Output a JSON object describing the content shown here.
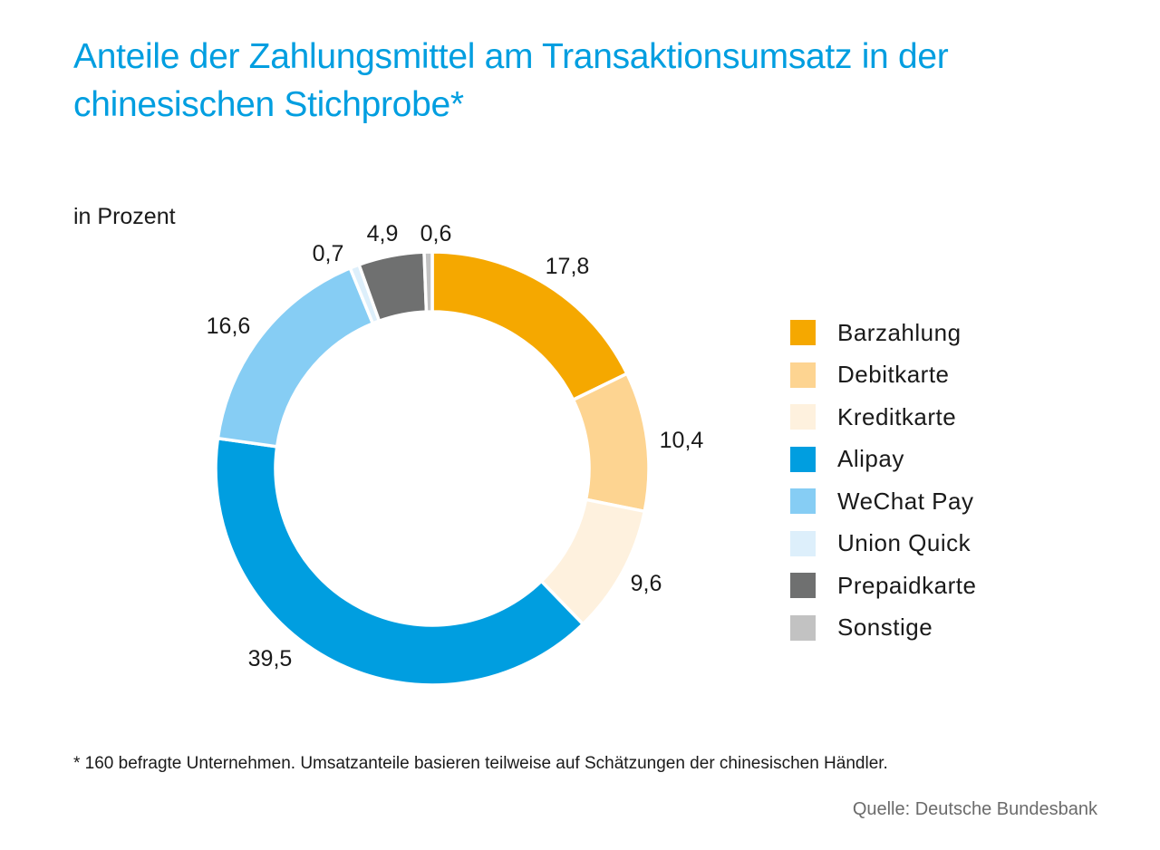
{
  "chart_data": {
    "type": "pie",
    "variant": "donut",
    "title": "Anteile der Zahlungsmittel am Transaktionsumsatz in der chinesischen Stichprobe*",
    "unit_label": "in Prozent",
    "start": "top",
    "direction": "clockwise",
    "legend_position": "right",
    "slices": [
      {
        "name": "Barzahlung",
        "value": 17.8,
        "label": "17,8",
        "color": "#F5A800"
      },
      {
        "name": "Debitkarte",
        "value": 10.4,
        "label": "10,4",
        "color": "#FDD491"
      },
      {
        "name": "Kreditkarte",
        "value": 9.6,
        "label": "9,6",
        "color": "#FEF1DE"
      },
      {
        "name": "Alipay",
        "value": 39.5,
        "label": "39,5",
        "color": "#009EE0"
      },
      {
        "name": "WeChat Pay",
        "value": 16.6,
        "label": "16,6",
        "color": "#86CDF4"
      },
      {
        "name": "Union Quick",
        "value": 0.7,
        "label": "0,7",
        "color": "#DDEFFB"
      },
      {
        "name": "Prepaidkarte",
        "value": 4.9,
        "label": "4,9",
        "color": "#6F7070"
      },
      {
        "name": "Sonstige",
        "value": 0.6,
        "label": "0,6",
        "color": "#C2C2C2"
      }
    ],
    "footnote": "* 160 befragte Unternehmen. Umsatzanteile basieren teilweise auf Schätzungen der chinesischen Händler.",
    "source": "Quelle: Deutsche Bundesbank"
  }
}
